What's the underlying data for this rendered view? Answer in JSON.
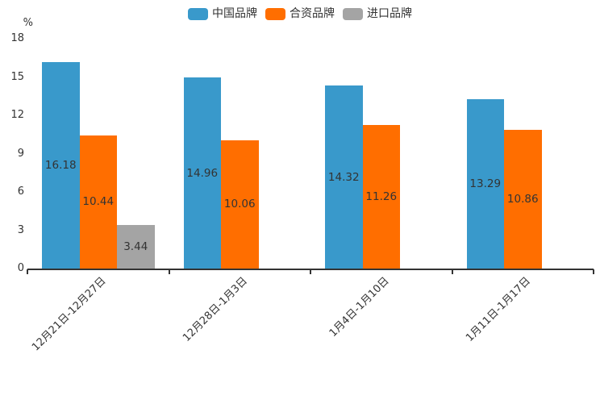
{
  "chart_data": {
    "type": "bar",
    "title": "",
    "unit_label": "%",
    "categories": [
      "12月21日-12月27日",
      "12月28日-1月3日",
      "1月4日-1月10日",
      "1月11日-1月17日"
    ],
    "series": [
      {
        "name": "中国品牌",
        "color": "#3999cb",
        "values": [
          16.18,
          14.96,
          14.32,
          13.29
        ]
      },
      {
        "name": "合资品牌",
        "color": "#ff6e00",
        "values": [
          10.44,
          10.06,
          11.26,
          10.86
        ]
      },
      {
        "name": "进口品牌",
        "color": "#a4a4a4",
        "values": [
          3.44,
          null,
          null,
          null
        ]
      }
    ],
    "ylim": [
      0,
      18
    ],
    "yticks": [
      0,
      3,
      6,
      9,
      12,
      15,
      18
    ],
    "legend_position": "top",
    "grid": false,
    "value_labels": "inside-middle",
    "xlabel_rotation": -45,
    "axis_color": "#333333",
    "label_color": "#333333",
    "background": "#ffffff"
  }
}
